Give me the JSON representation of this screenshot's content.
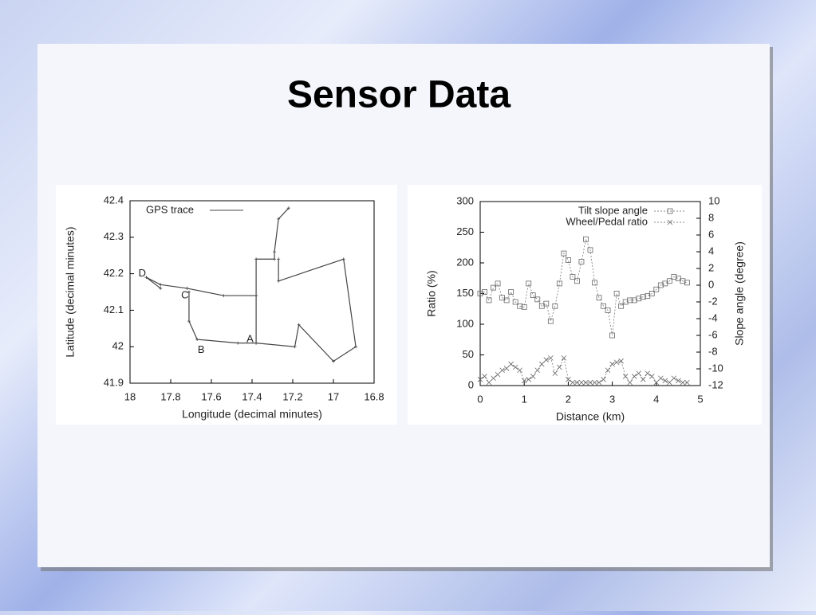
{
  "title": "Sensor Data",
  "chart_data": [
    {
      "type": "line",
      "xlabel": "Longitude (decimal minutes)",
      "ylabel": "Latitude (decimal minutes)",
      "xlim": [
        18,
        16.8
      ],
      "ylim": [
        41.9,
        42.4
      ],
      "xticks": [
        18,
        17.8,
        17.6,
        17.4,
        17.2,
        17,
        16.8
      ],
      "yticks": [
        41.9,
        42,
        42.1,
        42.2,
        42.3,
        42.4
      ],
      "legend": "top-left",
      "x": [
        17.85,
        17.92,
        17.85,
        17.72,
        17.54,
        17.38,
        17.38,
        17.38,
        17.29,
        17.29,
        17.27,
        17.22,
        null,
        17.71,
        17.71,
        17.67,
        17.47,
        17.38,
        17.19,
        17.17,
        17.0,
        16.89,
        16.95,
        17.27,
        17.27
      ],
      "series": [
        {
          "name": "GPS trace",
          "color": "#444444",
          "marker": "plus",
          "values": [
            42.16,
            42.19,
            42.17,
            42.16,
            42.14,
            42.14,
            42.01,
            42.24,
            42.24,
            42.26,
            42.35,
            42.38,
            null,
            42.15,
            42.07,
            42.02,
            42.01,
            42.01,
            42.0,
            42.06,
            41.96,
            42.0,
            42.24,
            42.18,
            42.24
          ]
        }
      ],
      "annotations": [
        {
          "text": "A",
          "x": 17.41,
          "y": 42.02
        },
        {
          "text": "B",
          "x": 17.65,
          "y": 41.99
        },
        {
          "text": "C",
          "x": 17.73,
          "y": 42.14
        },
        {
          "text": "D",
          "x": 17.94,
          "y": 42.2
        }
      ]
    },
    {
      "type": "line",
      "xlabel": "Distance (km)",
      "ylabel": "Ratio (%)",
      "y2label": "Slope angle (degree)",
      "xlim": [
        0,
        5
      ],
      "ylim": [
        0,
        300
      ],
      "y2lim": [
        -12,
        10
      ],
      "xticks": [
        0,
        1,
        2,
        3,
        4,
        5
      ],
      "yticks": [
        0,
        50,
        100,
        150,
        200,
        250,
        300
      ],
      "y2ticks": [
        -12,
        -10,
        -8,
        -6,
        -4,
        -2,
        0,
        2,
        4,
        6,
        8,
        10
      ],
      "legend": "top-right",
      "x": [
        0.0,
        0.1,
        0.2,
        0.3,
        0.4,
        0.5,
        0.6,
        0.7,
        0.8,
        0.9,
        1.0,
        1.1,
        1.2,
        1.3,
        1.4,
        1.5,
        1.6,
        1.7,
        1.8,
        1.9,
        2.0,
        2.1,
        2.2,
        2.3,
        2.4,
        2.5,
        2.6,
        2.7,
        2.8,
        2.9,
        3.0,
        3.1,
        3.2,
        3.3,
        3.4,
        3.5,
        3.6,
        3.7,
        3.8,
        3.9,
        4.0,
        4.1,
        4.2,
        4.3,
        4.4,
        4.5,
        4.6,
        4.7
      ],
      "series": [
        {
          "name": "Tilt slope angle",
          "color": "#666666",
          "marker": "square",
          "axis": "y2",
          "values": [
            -1.0,
            -0.8,
            -1.8,
            -0.3,
            0.2,
            -1.5,
            -1.8,
            -0.8,
            -2.0,
            -2.5,
            -2.6,
            0.2,
            -1.2,
            -1.7,
            -2.5,
            -2.2,
            -4.3,
            -2.5,
            0.2,
            3.8,
            3.0,
            1.0,
            0.5,
            2.8,
            5.5,
            4.2,
            0.3,
            -1.5,
            -2.5,
            -3.0,
            -6.0,
            -1.0,
            -2.5,
            -2.0,
            -1.8,
            -1.8,
            -1.6,
            -1.4,
            -1.3,
            -1.0,
            -0.5,
            0.0,
            0.2,
            0.5,
            1.0,
            0.8,
            0.5,
            0.3
          ]
        },
        {
          "name": "Wheel/Pedal ratio",
          "color": "#666666",
          "marker": "x",
          "values": [
            10,
            15,
            5,
            12,
            18,
            25,
            28,
            35,
            30,
            25,
            8,
            10,
            15,
            25,
            35,
            42,
            45,
            20,
            30,
            45,
            10,
            5,
            5,
            5,
            5,
            5,
            5,
            5,
            10,
            25,
            35,
            38,
            40,
            15,
            5,
            15,
            20,
            10,
            20,
            15,
            5,
            12,
            8,
            5,
            12,
            8,
            5,
            5
          ]
        }
      ]
    }
  ]
}
